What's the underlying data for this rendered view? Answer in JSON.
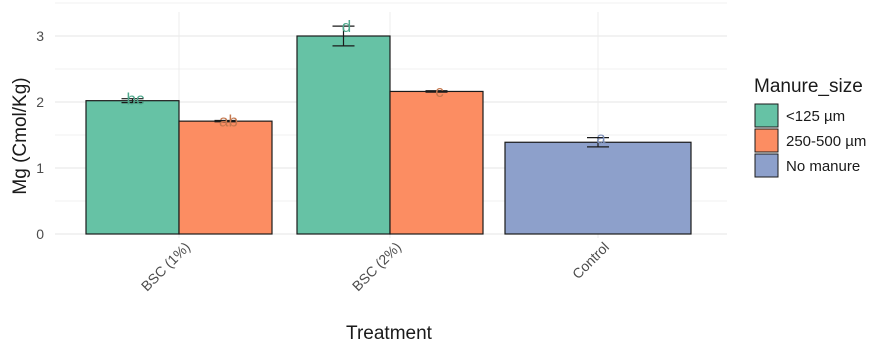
{
  "chart_data": {
    "type": "bar",
    "xlabel": "Treatment",
    "ylabel": "Mg (Cmol/Kg)",
    "ylim": [
      0,
      3.3
    ],
    "yticks": [
      0,
      1,
      2,
      3
    ],
    "categories": [
      "BSC (1%)",
      "BSC (2%)",
      "Control"
    ],
    "grid": true,
    "legend": {
      "title": "Manure_size",
      "placement": "right",
      "entries": [
        {
          "name": "<125 µm",
          "color": "#66c2a5"
        },
        {
          "name": "250-500 µm",
          "color": "#fc8d62"
        },
        {
          "name": "No manure",
          "color": "#8da0cb"
        }
      ]
    },
    "series": [
      {
        "name": "<125 µm",
        "color": "#66c2a5",
        "points": [
          {
            "category": "BSC (1%)",
            "value": 2.02,
            "error": 0.03,
            "label": "bc"
          },
          {
            "category": "BSC (2%)",
            "value": 3.0,
            "error": 0.15,
            "label": "d"
          }
        ]
      },
      {
        "name": "250-500 µm",
        "color": "#fc8d62",
        "points": [
          {
            "category": "BSC (1%)",
            "value": 1.71,
            "error": 0.01,
            "label": "ab"
          },
          {
            "category": "BSC (2%)",
            "value": 2.16,
            "error": 0.01,
            "label": "c"
          }
        ]
      },
      {
        "name": "No manure",
        "color": "#8da0cb",
        "points": [
          {
            "category": "Control",
            "value": 1.39,
            "error": 0.07,
            "label": "a"
          }
        ]
      }
    ]
  }
}
